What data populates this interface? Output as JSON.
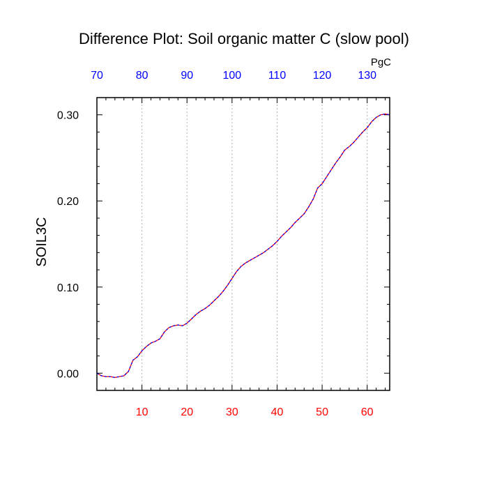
{
  "chart_data": {
    "type": "line",
    "title": "Difference Plot: Soil organic matter C (slow pool)",
    "ylabel": "SOIL3C",
    "top_axis_unit": "PgC",
    "xlim": [
      0,
      65
    ],
    "ylim": [
      -0.02,
      0.32
    ],
    "bottom_ticks": [
      10,
      20,
      30,
      40,
      50,
      60
    ],
    "top_ticks": [
      "70",
      "80",
      "90",
      "100",
      "110",
      "120",
      "130"
    ],
    "top_tick_positions": [
      0,
      10,
      20,
      30,
      40,
      50,
      60
    ],
    "y_ticks": [
      0.0,
      0.1,
      0.2,
      0.3
    ],
    "y_tick_labels": [
      "0.00",
      "0.10",
      "0.20",
      "0.30"
    ],
    "grid": "vertical dotted at bottom ticks",
    "colors": {
      "line": "#ff0000",
      "line_dash": "#0000ff",
      "bottom_ticks": "#ff0000",
      "top_ticks": "#0000ff"
    },
    "series": [
      {
        "x": [
          0,
          1,
          2,
          3,
          4,
          5,
          6,
          7,
          8,
          9,
          10,
          11,
          12,
          13,
          14,
          15,
          16,
          17,
          18,
          19,
          20,
          21,
          22,
          23,
          24,
          25,
          26,
          27,
          28,
          29,
          30,
          31,
          32,
          33,
          34,
          35,
          36,
          37,
          38,
          39,
          40,
          41,
          42,
          43,
          44,
          45,
          46,
          47,
          48,
          49,
          50,
          51,
          52,
          53,
          54,
          55,
          56,
          57,
          58,
          59,
          60,
          61,
          62,
          63,
          64,
          65
        ],
        "y": [
          0.0,
          -0.003,
          -0.004,
          -0.004,
          -0.005,
          -0.004,
          -0.003,
          0.002,
          0.015,
          0.019,
          0.026,
          0.031,
          0.035,
          0.037,
          0.04,
          0.048,
          0.053,
          0.055,
          0.056,
          0.055,
          0.058,
          0.063,
          0.068,
          0.072,
          0.075,
          0.079,
          0.084,
          0.089,
          0.095,
          0.102,
          0.11,
          0.118,
          0.124,
          0.128,
          0.131,
          0.134,
          0.137,
          0.14,
          0.144,
          0.148,
          0.153,
          0.159,
          0.164,
          0.169,
          0.175,
          0.18,
          0.185,
          0.193,
          0.202,
          0.215,
          0.22,
          0.228,
          0.236,
          0.244,
          0.251,
          0.259,
          0.263,
          0.268,
          0.274,
          0.28,
          0.285,
          0.292,
          0.297,
          0.3,
          0.301,
          0.3
        ]
      }
    ]
  }
}
